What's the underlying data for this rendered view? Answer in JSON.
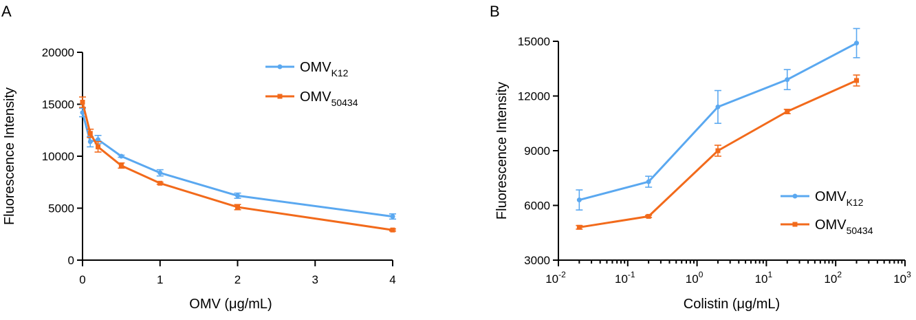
{
  "colors": {
    "k12": "#5aa8f0",
    "o50434": "#f26a1b"
  },
  "chart_data": [
    {
      "panel": "A",
      "type": "line",
      "xlabel": "OMV (μg/mL)",
      "ylabel": "Fluorescence Intensity",
      "xscale": "linear",
      "xlim": [
        0,
        4
      ],
      "ylim": [
        0,
        20000
      ],
      "xticks": [
        0,
        1,
        2,
        3,
        4
      ],
      "xtick_labels": [
        "0",
        "1",
        "2",
        "3",
        "4"
      ],
      "yticks": [
        0,
        5000,
        10000,
        15000,
        20000
      ],
      "ytick_labels": [
        "0",
        "5000",
        "10000",
        "15000",
        "20000"
      ],
      "legend_position": "top-right",
      "series": [
        {
          "name": "OMV",
          "subscript": "K12",
          "color_key": "k12",
          "marker": "circle",
          "x": [
            0,
            0.1,
            0.2,
            0.5,
            1,
            2,
            4
          ],
          "values": [
            14200,
            11400,
            11600,
            10000,
            8400,
            6200,
            4200
          ],
          "errors": [
            400,
            500,
            400,
            100,
            300,
            250,
            250
          ]
        },
        {
          "name": "OMV",
          "subscript": "50434",
          "color_key": "o50434",
          "marker": "square",
          "x": [
            0,
            0.1,
            0.2,
            0.5,
            1,
            2,
            4
          ],
          "values": [
            15200,
            12200,
            10900,
            9100,
            7400,
            5100,
            2900
          ],
          "errors": [
            500,
            400,
            500,
            250,
            100,
            250,
            100
          ]
        }
      ]
    },
    {
      "panel": "B",
      "type": "line",
      "xlabel": "Colistin (μg/mL)",
      "ylabel": "Fluorescence Intensity",
      "xscale": "log",
      "xlim": [
        0.01,
        1000
      ],
      "ylim": [
        3000,
        15000
      ],
      "xtick_exponents": [
        -2,
        -1,
        0,
        1,
        2,
        3
      ],
      "xtick_labels": [
        "10",
        "10",
        "10",
        "10",
        "10",
        "10"
      ],
      "xtick_superscripts": [
        "-2",
        "-1",
        "0",
        "1",
        "2",
        "3"
      ],
      "yticks": [
        3000,
        6000,
        9000,
        12000,
        15000
      ],
      "ytick_labels": [
        "3000",
        "6000",
        "9000",
        "12000",
        "15000"
      ],
      "legend_position": "bottom-right",
      "series": [
        {
          "name": "OMV",
          "subscript": "K12",
          "color_key": "k12",
          "marker": "circle",
          "x": [
            0.02,
            0.2,
            2,
            20,
            200
          ],
          "values": [
            6300,
            7300,
            11400,
            12900,
            14900
          ],
          "errors": [
            550,
            300,
            900,
            550,
            800
          ]
        },
        {
          "name": "OMV",
          "subscript": "50434",
          "color_key": "o50434",
          "marker": "square",
          "x": [
            0.02,
            0.2,
            2,
            20,
            200
          ],
          "values": [
            4800,
            5400,
            9000,
            11150,
            12850
          ],
          "errors": [
            100,
            60,
            300,
            120,
            300
          ]
        }
      ]
    }
  ]
}
